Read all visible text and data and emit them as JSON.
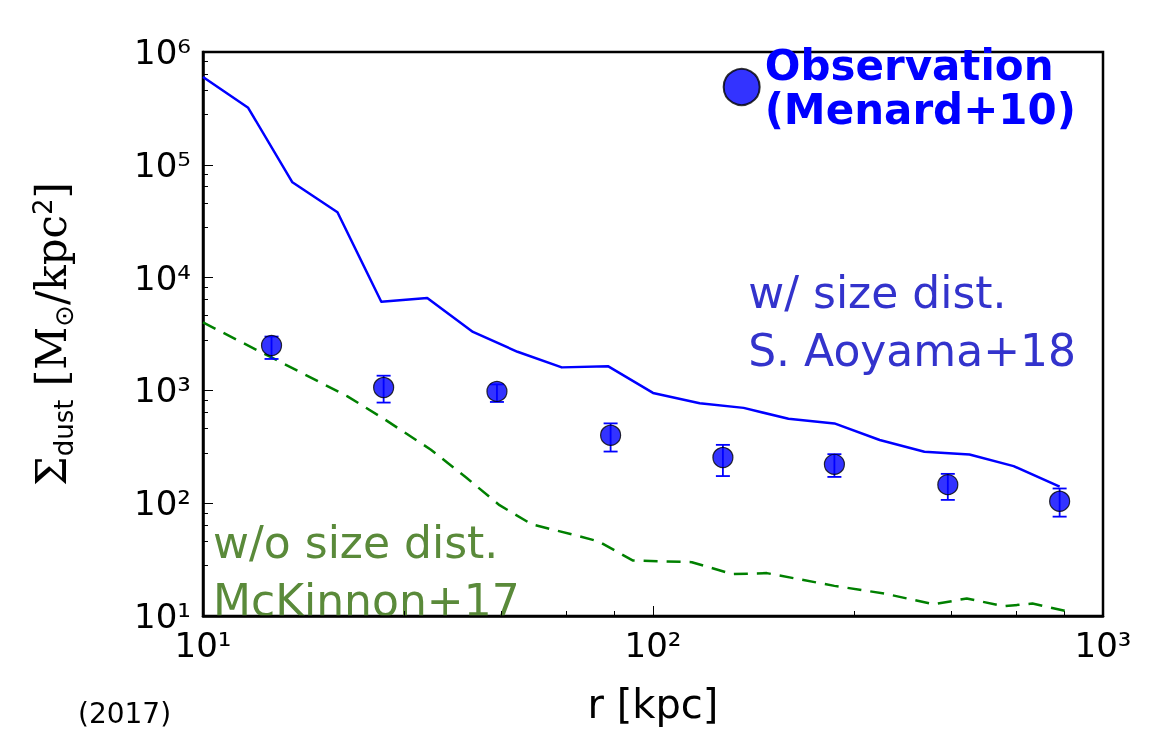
{
  "chart_data": {
    "type": "line",
    "xlabel": "r [kpc]",
    "ylabel": "Σ$_{dust}$ [M$_{⊙}$/kpc$^{2}$]",
    "log": "xy",
    "xlim": [
      10,
      1000
    ],
    "ylim": [
      10,
      1000000
    ],
    "xticks": [
      {
        "value": 10,
        "label": "10¹"
      },
      {
        "value": 100,
        "label": "10²"
      },
      {
        "value": 1000,
        "label": "10³"
      }
    ],
    "yticks": [
      {
        "value": 10,
        "label": "10¹"
      },
      {
        "value": 100,
        "label": "10²"
      },
      {
        "value": 1000,
        "label": "10³"
      },
      {
        "value": 10000,
        "label": "10⁴"
      },
      {
        "value": 100000,
        "label": "10⁵"
      },
      {
        "value": 1000000,
        "label": "10⁶"
      }
    ],
    "legend": "top right",
    "grid": false,
    "series": [
      {
        "name": "w/ size dist.\nS. Aoyama+18",
        "color": "#0000ff",
        "line_style": "solid",
        "marker": "none",
        "x": [
          10,
          12.6,
          15.8,
          19.9,
          24.9,
          31.5,
          39.8,
          50,
          62.7,
          79.4,
          100,
          127,
          159,
          200,
          253,
          319,
          401,
          505,
          633,
          801
        ],
        "values": [
          600000,
          320000,
          70000,
          38000,
          6100,
          6600,
          3300,
          2200,
          1600,
          1640,
          950,
          770,
          700,
          560,
          510,
          363,
          286,
          270,
          213,
          140
        ]
      },
      {
        "name": "w/o size dist.\nMcKinnon+17",
        "color": "#008000",
        "line_style": "dashed",
        "marker": "none",
        "x": [
          10,
          16.4,
          20.9,
          25.4,
          32.1,
          38.5,
          45.6,
          53.8,
          65.9,
          75.5,
          90.3,
          122,
          150,
          179,
          253,
          327,
          421,
          498,
          602,
          697,
          834
        ],
        "values": [
          4000,
          1460,
          890,
          550,
          298,
          168,
          96,
          65,
          53,
          46,
          31,
          30,
          23.5,
          24,
          18.5,
          15.8,
          12.7,
          14.3,
          12.2,
          12.9,
          11
        ]
      },
      {
        "name": "Observation\n(Menard+10)",
        "type": "scatter",
        "color": "#0000ff",
        "marker": "circle",
        "x": [
          14.2,
          25.2,
          45,
          80.5,
          143,
          253,
          452,
          801
        ],
        "values": [
          2500,
          1060,
          980,
          400,
          254,
          221,
          146,
          104
        ],
        "errors": [
          [
            1900,
            3000
          ],
          [
            780,
            1350
          ],
          [
            790,
            1130
          ],
          [
            287,
            510
          ],
          [
            174,
            329
          ],
          [
            171,
            272
          ],
          [
            107,
            182
          ],
          [
            76,
            135
          ]
        ]
      }
    ],
    "annotations": [
      "(2017)"
    ]
  }
}
